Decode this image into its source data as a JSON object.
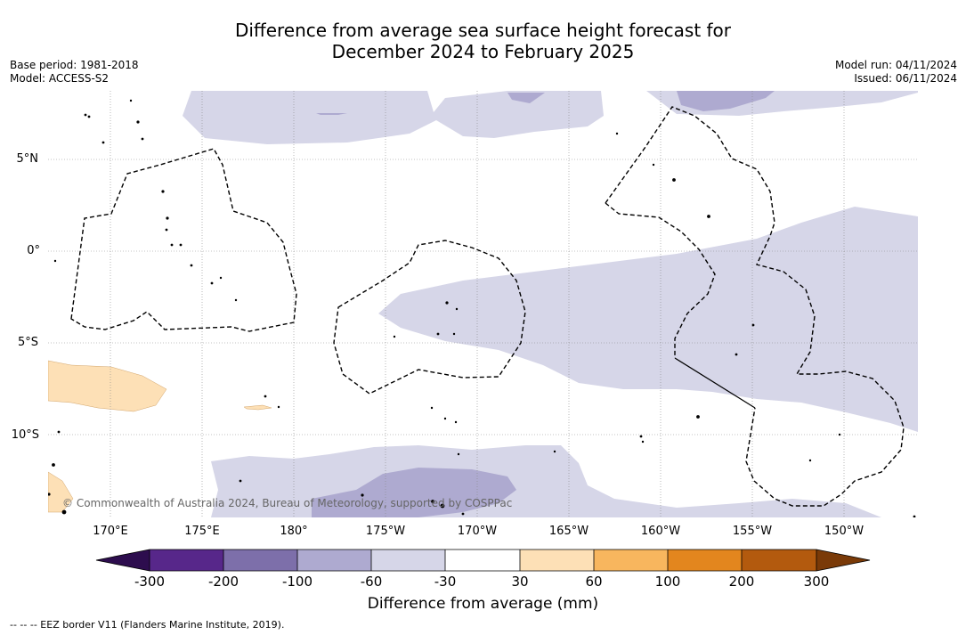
{
  "title_line1": "Difference from average sea surface height forecast for",
  "title_line2": "December 2024 to February 2025",
  "meta_left": {
    "base_period": "Base period: 1981-2018",
    "model": "Model: ACCESS-S2"
  },
  "meta_right": {
    "model_run": "Model run: 04/11/2024",
    "issued": "Issued: 06/11/2024"
  },
  "lat_labels": [
    "5°N",
    "0°",
    "5°S",
    "10°S"
  ],
  "lon_labels": [
    "170°E",
    "175°E",
    "180°",
    "175°W",
    "170°W",
    "165°W",
    "160°W",
    "155°W",
    "150°W"
  ],
  "credit": "© Commonwealth of Australia 2024, Bureau of Meteorology, supported by COSPPac",
  "colorbar": {
    "ticks": [
      "-300",
      "-200",
      "-100",
      "-60",
      "-30",
      "30",
      "60",
      "100",
      "200",
      "300"
    ],
    "colors": [
      "#2d0d4e",
      "#57278a",
      "#7d6faa",
      "#aeaad0",
      "#d6d6e8",
      "#ffffff",
      "#fde0b6",
      "#f8b65e",
      "#e3861e",
      "#b35a0e",
      "#7a3a08"
    ],
    "label": "Difference from average (mm)"
  },
  "footer": "--  --  -- EEZ border V11 (Flanders Marine Institute, 2019)."
}
